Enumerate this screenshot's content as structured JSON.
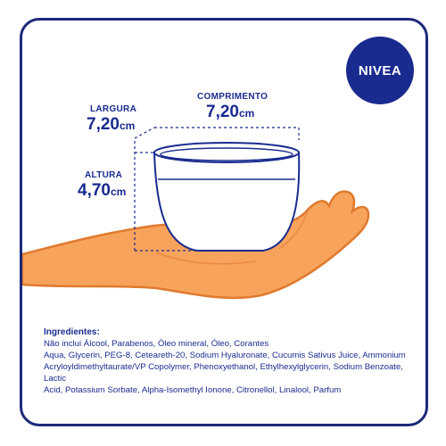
{
  "brand": {
    "logo_text": "NIVEA",
    "color": "#1a2b8f"
  },
  "dimensions": {
    "largura": {
      "label": "LARGURA",
      "value": "7,20",
      "unit": "cm"
    },
    "comprimento": {
      "label": "COMPRIMENTO",
      "value": "7,20",
      "unit": "cm"
    },
    "altura": {
      "label": "ALTURA",
      "value": "4,70",
      "unit": "cm"
    }
  },
  "ingredients": {
    "title": "Ingredientes:",
    "line1": "Não inclui Álcool, Parabenos, Óleo mineral, Óleo, Corantes",
    "line2": "Aqua, Glycerin, PEG-8, Ceteareth-20, Sodium Hyaluronate, Cucumis Sativus Juice, Ammonium",
    "line3": "Acryloyldimethyltaurate/VP Copolymer, Phenoxyethanol, Ethylhexylglycerin, Sodium Benzoate, Lactic",
    "line4": "Acid, Potassium Sorbate, Alpha-Isomethyl Ionone, Citronellol, Linalool, Parfum"
  },
  "colors": {
    "hand_fill": "#f7a35c",
    "hand_outline": "#e07a2e",
    "accent_blue": "#1a2b8f"
  }
}
